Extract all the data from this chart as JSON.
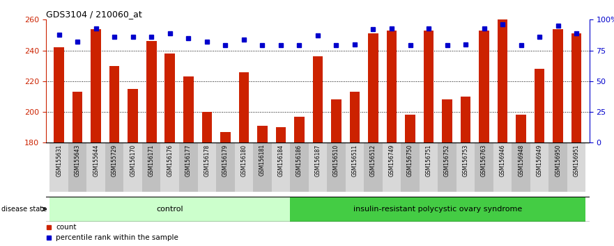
{
  "title": "GDS3104 / 210060_at",
  "samples": [
    "GSM155631",
    "GSM155643",
    "GSM155644",
    "GSM155729",
    "GSM156170",
    "GSM156171",
    "GSM156176",
    "GSM156177",
    "GSM156178",
    "GSM156179",
    "GSM156180",
    "GSM156181",
    "GSM156184",
    "GSM156186",
    "GSM156187",
    "GSM156510",
    "GSM156511",
    "GSM156512",
    "GSM156749",
    "GSM156750",
    "GSM156751",
    "GSM156752",
    "GSM156753",
    "GSM156763",
    "GSM156946",
    "GSM156948",
    "GSM156949",
    "GSM156950",
    "GSM156951"
  ],
  "counts": [
    242,
    213,
    254,
    230,
    215,
    246,
    238,
    223,
    200,
    187,
    226,
    191,
    190,
    197,
    236,
    208,
    213,
    251,
    253,
    198,
    253,
    208,
    210,
    253,
    261,
    198,
    228,
    254,
    251
  ],
  "percentiles": [
    88,
    82,
    93,
    86,
    86,
    86,
    89,
    85,
    82,
    79,
    84,
    79,
    79,
    79,
    87,
    79,
    80,
    92,
    93,
    79,
    93,
    79,
    80,
    93,
    96,
    79,
    86,
    95,
    89
  ],
  "n_control": 13,
  "control_label": "control",
  "disease_label": "insulin-resistant polycystic ovary syndrome",
  "ymin": 180,
  "ymax": 260,
  "yticks": [
    180,
    200,
    220,
    240,
    260
  ],
  "right_yticks": [
    0,
    25,
    50,
    75,
    100
  ],
  "bar_color": "#cc2200",
  "dot_color": "#0000cc",
  "control_bg": "#ccffcc",
  "disease_bg": "#44cc44",
  "legend_count_label": "count",
  "legend_pct_label": "percentile rank within the sample"
}
